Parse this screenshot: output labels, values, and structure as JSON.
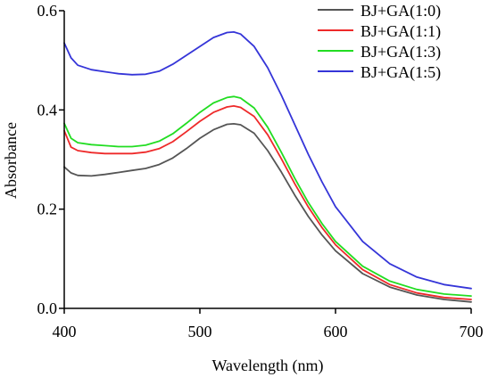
{
  "chart_data": {
    "type": "line",
    "title": "",
    "xlabel": "Wavelength (nm)",
    "ylabel": "Absorbance",
    "xlim": [
      400,
      700
    ],
    "ylim": [
      0.0,
      0.6
    ],
    "x_ticks": [
      "400",
      "500",
      "600",
      "700"
    ],
    "y_ticks": [
      "0.0",
      "0.2",
      "0.4",
      "0.6"
    ],
    "x_tick_values": [
      400,
      500,
      600,
      700
    ],
    "y_tick_values": [
      0.0,
      0.2,
      0.4,
      0.6
    ],
    "grid": false,
    "legend_position": "top-right",
    "series": [
      {
        "name": "BJ+GA(1:0)",
        "color": "#555555",
        "x": [
          400,
          405,
          410,
          420,
          430,
          440,
          450,
          460,
          470,
          480,
          490,
          500,
          510,
          520,
          525,
          530,
          540,
          550,
          560,
          570,
          580,
          590,
          600,
          620,
          640,
          660,
          680,
          700
        ],
        "y": [
          0.285,
          0.273,
          0.268,
          0.267,
          0.27,
          0.274,
          0.278,
          0.282,
          0.29,
          0.303,
          0.322,
          0.343,
          0.36,
          0.371,
          0.372,
          0.37,
          0.353,
          0.318,
          0.275,
          0.228,
          0.185,
          0.148,
          0.116,
          0.07,
          0.043,
          0.027,
          0.018,
          0.013
        ]
      },
      {
        "name": "BJ+GA(1:1)",
        "color": "#ee2a2a",
        "x": [
          400,
          405,
          410,
          420,
          430,
          440,
          450,
          460,
          470,
          480,
          490,
          500,
          510,
          520,
          525,
          530,
          540,
          550,
          560,
          570,
          580,
          590,
          600,
          620,
          640,
          660,
          680,
          700
        ],
        "y": [
          0.358,
          0.325,
          0.318,
          0.314,
          0.312,
          0.312,
          0.312,
          0.315,
          0.322,
          0.336,
          0.356,
          0.377,
          0.395,
          0.406,
          0.408,
          0.405,
          0.387,
          0.35,
          0.302,
          0.251,
          0.204,
          0.163,
          0.128,
          0.078,
          0.048,
          0.031,
          0.022,
          0.018
        ]
      },
      {
        "name": "BJ+GA(1:3)",
        "color": "#22dd22",
        "x": [
          400,
          405,
          410,
          420,
          430,
          440,
          450,
          460,
          470,
          480,
          490,
          500,
          510,
          520,
          525,
          530,
          540,
          550,
          560,
          570,
          580,
          590,
          600,
          620,
          640,
          660,
          680,
          700
        ],
        "y": [
          0.373,
          0.343,
          0.334,
          0.33,
          0.328,
          0.326,
          0.326,
          0.329,
          0.337,
          0.352,
          0.373,
          0.395,
          0.414,
          0.425,
          0.427,
          0.424,
          0.404,
          0.365,
          0.315,
          0.262,
          0.213,
          0.171,
          0.135,
          0.085,
          0.055,
          0.038,
          0.029,
          0.025
        ]
      },
      {
        "name": "BJ+GA(1:5)",
        "color": "#3535d8",
        "x": [
          400,
          405,
          410,
          420,
          430,
          440,
          450,
          460,
          470,
          480,
          490,
          500,
          510,
          520,
          525,
          530,
          540,
          550,
          560,
          570,
          580,
          590,
          600,
          620,
          640,
          660,
          680,
          700
        ],
        "y": [
          0.535,
          0.505,
          0.49,
          0.481,
          0.477,
          0.473,
          0.471,
          0.472,
          0.478,
          0.492,
          0.51,
          0.528,
          0.546,
          0.556,
          0.557,
          0.553,
          0.528,
          0.485,
          0.43,
          0.37,
          0.31,
          0.255,
          0.205,
          0.135,
          0.09,
          0.063,
          0.048,
          0.04
        ]
      }
    ]
  }
}
